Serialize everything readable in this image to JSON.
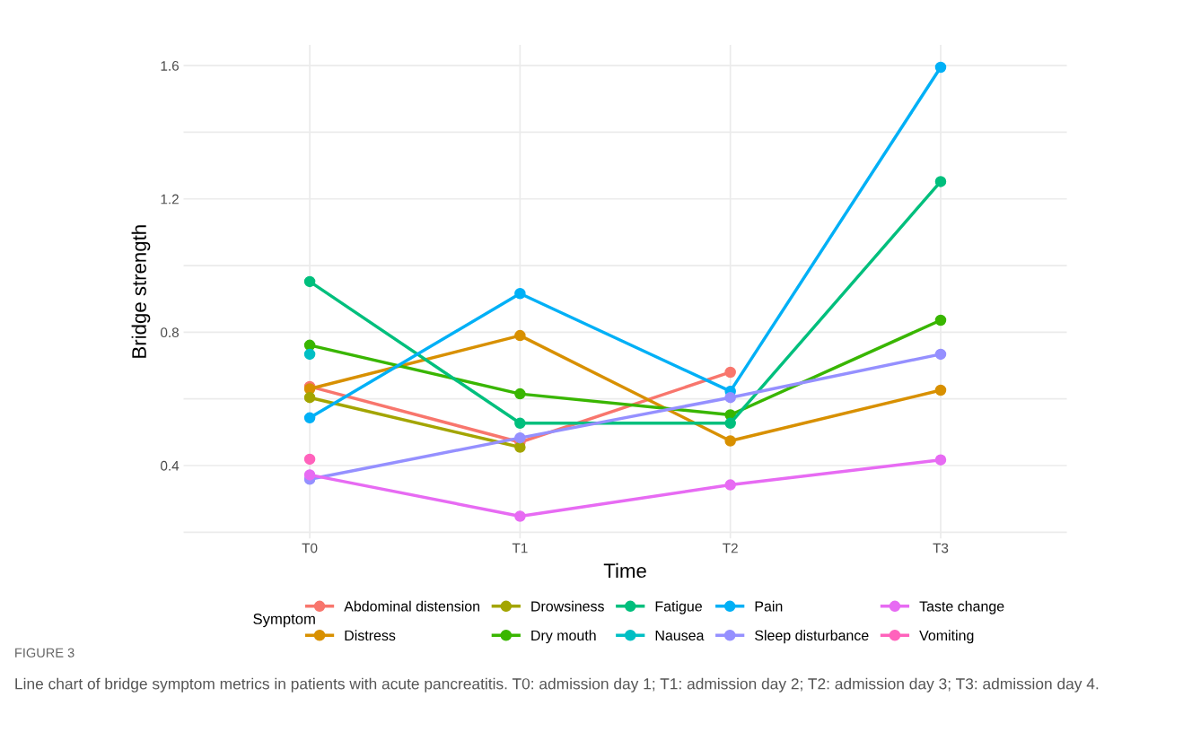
{
  "chart_data": {
    "type": "line",
    "xlabel": "Time",
    "ylabel": "Bridge strength",
    "legend_title": "Symptom",
    "categories": [
      "T0",
      "T1",
      "T2",
      "T3"
    ],
    "series": [
      {
        "name": "Abdominal distension",
        "color": "#f8766d",
        "values": [
          0.637,
          0.47,
          0.68,
          null
        ]
      },
      {
        "name": "Distress",
        "color": "#d89000",
        "values": [
          0.63,
          0.79,
          0.474,
          0.626
        ]
      },
      {
        "name": "Drowsiness",
        "color": "#a3a500",
        "values": [
          0.604,
          0.455,
          null,
          null
        ]
      },
      {
        "name": "Dry mouth",
        "color": "#39b600",
        "values": [
          0.761,
          0.615,
          0.552,
          0.836
        ]
      },
      {
        "name": "Fatigue",
        "color": "#00bf7d",
        "values": [
          0.952,
          0.527,
          0.527,
          1.252
        ]
      },
      {
        "name": "Nausea",
        "color": "#00bfc4",
        "values": [
          0.734,
          null,
          null,
          null
        ]
      },
      {
        "name": "Pain",
        "color": "#00b0f6",
        "values": [
          0.543,
          0.916,
          0.623,
          1.595
        ]
      },
      {
        "name": "Sleep disturbance",
        "color": "#9590ff",
        "values": [
          0.359,
          0.483,
          0.604,
          0.734
        ]
      },
      {
        "name": "Taste change",
        "color": "#e76bf3",
        "values": [
          0.372,
          0.248,
          0.342,
          0.417
        ]
      },
      {
        "name": "Vomiting",
        "color": "#ff62bc",
        "values": [
          0.419,
          null,
          null,
          null
        ]
      }
    ],
    "ylim": [
      0.181,
      1.662
    ],
    "yticks": [
      {
        "value": 0.2,
        "label": null
      },
      0.4,
      {
        "value": 0.6,
        "label": null
      },
      0.8,
      {
        "value": 1.0,
        "label": null
      },
      1.2,
      {
        "value": 1.4,
        "label": null
      },
      1.6
    ],
    "grid": true,
    "legend": "bottom",
    "marker": "circle",
    "line_style": "solid",
    "annotations": [
      "FIGURE 3",
      "Line chart of bridge symptom metrics in patients with acute pancreatitis. T0: admission day 1; T1: admission day 2; T2: admission day 3; T3: admission day 4."
    ]
  }
}
